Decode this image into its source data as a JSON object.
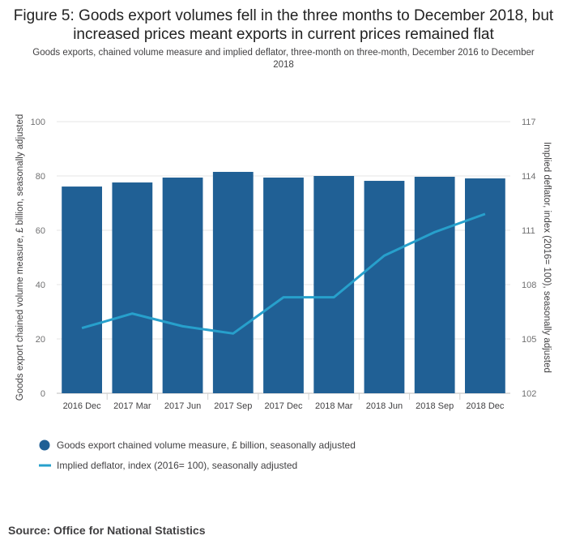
{
  "chart_data": {
    "type": "bar",
    "title": "Figure 5: Goods export volumes fell in the three months to December 2018, but increased prices meant exports in current prices remained flat",
    "subtitle": "Goods exports, chained volume measure and implied deflator, three-month on three-month, December 2016 to December 2018",
    "categories": [
      "2016 Dec",
      "2017 Mar",
      "2017 Jun",
      "2017 Sep",
      "2017 Dec",
      "2018 Mar",
      "2018 Jun",
      "2018 Sep",
      "2018 Dec"
    ],
    "series": [
      {
        "name": "Goods export chained volume measure, £ billion, seasonally adjusted",
        "type": "bar",
        "axis": "left",
        "color": "#206095",
        "values": [
          76.1,
          77.6,
          79.4,
          81.5,
          79.4,
          80.0,
          78.2,
          79.7,
          79.1
        ]
      },
      {
        "name": "Implied deflator, index (2016= 100), seasonally adjusted",
        "type": "line",
        "axis": "right",
        "color": "#27A0CC",
        "values": [
          105.6,
          106.4,
          105.7,
          105.3,
          107.3,
          107.3,
          109.6,
          110.9,
          111.9
        ]
      }
    ],
    "y_left": {
      "label": "Goods export chained volume measure, £ billion, seasonally adjusted",
      "min": 0,
      "max": 100,
      "ticks": [
        "100",
        "80",
        "60",
        "40",
        "20",
        "0"
      ]
    },
    "y_right": {
      "label": "Implied deflator, index (2016= 100), seasonally adjusted",
      "min": 102,
      "max": 117,
      "ticks": [
        "117",
        "114",
        "111",
        "108",
        "105",
        "102"
      ]
    },
    "grid": true,
    "legend_position": "bottom-left"
  },
  "source": {
    "text": "Source: Office for National Statistics"
  }
}
